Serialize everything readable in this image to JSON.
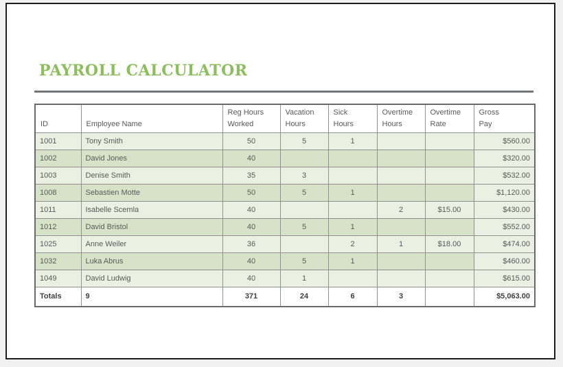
{
  "page": {
    "title_text": "PAYROLL CALCULATOR"
  },
  "colors": {
    "accent_green": "#8CBE5B",
    "row_light": "#EAF0E2",
    "row_dark": "#D7E3C8",
    "grid": "#909090",
    "table_border": "#696969",
    "page_border": "#1C1C1C",
    "page_bg": "#FFFFFF",
    "outer_bg": "#F0F0F0",
    "text": "#595959",
    "totals_text": "#3F3F3F",
    "divider": "#73737A"
  },
  "table": {
    "columns": [
      {
        "key": "id",
        "label": "ID",
        "align": "left"
      },
      {
        "key": "name",
        "label": "Employee Name",
        "align": "left"
      },
      {
        "key": "reg",
        "label": "Reg Hours\nWorked",
        "align": "center"
      },
      {
        "key": "vacation",
        "label": "Vacation\nHours",
        "align": "center"
      },
      {
        "key": "sick",
        "label": "Sick\nHours",
        "align": "center"
      },
      {
        "key": "ot_hours",
        "label": "Overtime\nHours",
        "align": "center"
      },
      {
        "key": "ot_rate",
        "label": "Overtime\nRate",
        "align": "center"
      },
      {
        "key": "gross",
        "label": "Gross\nPay",
        "align": "right"
      }
    ],
    "rows": [
      {
        "id": "1001",
        "name": "Tony Smith",
        "reg": "50",
        "vacation": "5",
        "sick": "",
        "ot_hours": "",
        "ot_rate": "",
        "gross": "$560.00",
        "sick2": ""
      },
      {
        "id": "1002",
        "name": "David Jones",
        "reg": "40",
        "vacation": "",
        "sick": "",
        "ot_hours": "",
        "ot_rate": "",
        "gross": "$320.00"
      },
      {
        "id": "1003",
        "name": "Denise Smith",
        "reg": "35",
        "vacation": "3",
        "sick": "",
        "ot_hours": "",
        "ot_rate": "",
        "gross": "$532.00"
      },
      {
        "id": "1008",
        "name": "Sebastien Motte",
        "reg": "50",
        "vacation": "5",
        "sick": "1",
        "ot_hours": "",
        "ot_rate": "",
        "gross": "$1,120.00"
      },
      {
        "id": "1011",
        "name": "Isabelle Scemla",
        "reg": "40",
        "vacation": "",
        "sick": "",
        "ot_hours": "2",
        "ot_rate": "$15.00",
        "gross": "$430.00"
      },
      {
        "id": "1012",
        "name": "David Bristol",
        "reg": "40",
        "vacation": "5",
        "sick": "1",
        "ot_hours": "",
        "ot_rate": "",
        "gross": "$552.00"
      },
      {
        "id": "1025",
        "name": "Anne Weiler",
        "reg": "36",
        "vacation": "",
        "sick": "2",
        "ot_hours": "1",
        "ot_rate": "$18.00",
        "gross": "$474.00"
      },
      {
        "id": "1032",
        "name": "Luka Abrus",
        "reg": "40",
        "vacation": "5",
        "sick": "1",
        "ot_hours": "",
        "ot_rate": "",
        "gross": "$460.00"
      },
      {
        "id": "1049",
        "name": "David Ludwig",
        "reg": "40",
        "vacation": "1",
        "sick": "",
        "ot_hours": "",
        "ot_rate": "",
        "gross": "$615.00"
      }
    ],
    "row_fix": {
      "row_1001_sick": "1"
    },
    "totals": {
      "id": "Totals",
      "name": "9",
      "reg": "371",
      "vacation": "24",
      "sick": "6",
      "ot_hours": "3",
      "ot_rate": "",
      "gross": "$5,063.00"
    }
  }
}
